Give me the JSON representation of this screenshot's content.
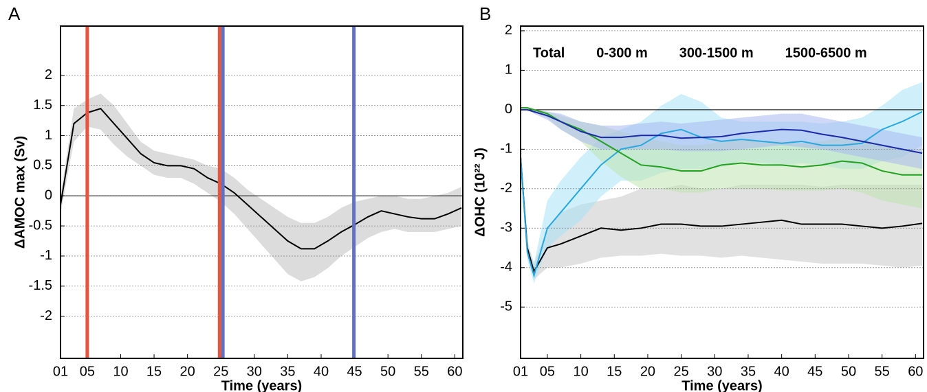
{
  "chart_data": [
    {
      "type": "line",
      "panel_label": "A",
      "xlabel": "Time (years)",
      "ylabel": "ΔAMOC max (Sv)",
      "x": [
        1,
        3,
        5,
        7,
        9,
        11,
        13,
        15,
        17,
        19,
        21,
        23,
        25,
        27,
        29,
        31,
        33,
        35,
        37,
        39,
        41,
        43,
        45,
        47,
        49,
        51,
        53,
        55,
        57,
        59,
        61
      ],
      "series": [
        {
          "color": "#000000",
          "band_color": "#dcdcdc",
          "values": [
            -0.15,
            1.2,
            1.38,
            1.45,
            1.2,
            0.95,
            0.7,
            0.55,
            0.5,
            0.5,
            0.45,
            0.3,
            0.2,
            0.05,
            -0.15,
            -0.35,
            -0.55,
            -0.75,
            -0.88,
            -0.88,
            -0.75,
            -0.6,
            -0.48,
            -0.35,
            -0.25,
            -0.3,
            -0.35,
            -0.38,
            -0.38,
            -0.3,
            -0.2
          ],
          "upper": [
            0,
            1.45,
            1.6,
            1.7,
            1.5,
            1.2,
            0.9,
            0.75,
            0.7,
            0.65,
            0.6,
            0.5,
            0.45,
            0.3,
            0.1,
            -0.05,
            -0.2,
            -0.35,
            -0.45,
            -0.45,
            -0.35,
            -0.2,
            -0.1,
            -0.05,
            0,
            0,
            -0.05,
            -0.05,
            0,
            0.05,
            0.15
          ],
          "lower": [
            -0.3,
            0.9,
            1.15,
            1.1,
            0.85,
            0.65,
            0.5,
            0.35,
            0.3,
            0.3,
            0.2,
            0.05,
            -0.1,
            -0.3,
            -0.55,
            -0.8,
            -1.05,
            -1.3,
            -1.42,
            -1.35,
            -1.2,
            -1.0,
            -0.85,
            -0.7,
            -0.6,
            -0.55,
            -0.6,
            -0.6,
            -0.6,
            -0.55,
            -0.5
          ]
        }
      ],
      "vlines": [
        {
          "x": 5,
          "color": "#e8553e"
        },
        {
          "x": 24.8,
          "color": "#e8553e"
        },
        {
          "x": 25.3,
          "color": "#6272c0"
        },
        {
          "x": 44.9,
          "color": "#6272c0"
        }
      ],
      "xlim": [
        1,
        61.2
      ],
      "ylim": [
        -2.7,
        2.82
      ],
      "xticks": [
        {
          "value": 1,
          "label": "01"
        },
        {
          "value": 5,
          "label": "05"
        },
        10,
        15,
        20,
        25,
        30,
        35,
        40,
        45,
        50,
        55,
        60
      ],
      "yticks": [
        -2,
        -1.5,
        -1,
        -0.5,
        0,
        0.5,
        1,
        1.5,
        2
      ],
      "grid": true,
      "zero_line": true
    },
    {
      "type": "line",
      "panel_label": "B",
      "xlabel": "Time (years)",
      "ylabel": "ΔOHC (10²² J)",
      "x": [
        1,
        2,
        3,
        5,
        7,
        10,
        13,
        16,
        19,
        22,
        25,
        28,
        31,
        34,
        37,
        40,
        43,
        46,
        49,
        52,
        55,
        58,
        61
      ],
      "series": [
        {
          "name": "Total",
          "color": "#000000",
          "band_color": "#c8c8c8",
          "values": [
            -1.2,
            -3.5,
            -4.1,
            -3.5,
            -3.4,
            -3.2,
            -3.0,
            -3.05,
            -3.0,
            -2.9,
            -2.9,
            -2.95,
            -2.95,
            -2.9,
            -2.85,
            -2.8,
            -2.9,
            -2.9,
            -2.9,
            -2.95,
            -3.0,
            -2.95,
            -2.88
          ],
          "upper": [
            -1.1,
            -3.3,
            -3.9,
            -3.0,
            -2.6,
            -2.4,
            -2.3,
            -2.2,
            -2.0,
            -2.0,
            -1.9,
            -2.0,
            -2.0,
            -1.9,
            -1.9,
            -1.9,
            -1.9,
            -1.95,
            -1.9,
            -1.9,
            -1.9,
            -1.9,
            -1.9
          ],
          "lower": [
            -1.3,
            -3.7,
            -4.3,
            -4.0,
            -4.0,
            -3.9,
            -3.75,
            -3.7,
            -3.7,
            -3.65,
            -3.7,
            -3.7,
            -3.75,
            -3.7,
            -3.75,
            -3.8,
            -3.85,
            -3.9,
            -3.9,
            -3.9,
            -3.95,
            -4.0,
            -3.95
          ]
        },
        {
          "name": "0-300 m",
          "color": "#29a8e0",
          "band_color": "#a8e4f5",
          "values": [
            -1.2,
            -3.6,
            -4.2,
            -3.0,
            -2.6,
            -2.0,
            -1.4,
            -1.0,
            -0.9,
            -0.6,
            -0.5,
            -0.7,
            -0.8,
            -0.75,
            -0.8,
            -0.85,
            -0.8,
            -0.9,
            -0.9,
            -0.85,
            -0.5,
            -0.3,
            -0.05
          ],
          "upper": [
            -1.1,
            -3.4,
            -3.9,
            -2.3,
            -1.8,
            -1.2,
            -0.7,
            -0.5,
            -0.3,
            0.1,
            0.4,
            0.2,
            -0.2,
            -0.3,
            -0.3,
            -0.3,
            -0.3,
            -0.35,
            -0.3,
            -0.2,
            0.1,
            0.5,
            0.7
          ],
          "lower": [
            -1.3,
            -3.8,
            -4.4,
            -3.5,
            -3.2,
            -2.8,
            -2.2,
            -1.8,
            -1.8,
            -1.6,
            -1.5,
            -1.5,
            -1.45,
            -1.3,
            -1.35,
            -1.4,
            -1.35,
            -1.4,
            -1.5,
            -1.5,
            -1.3,
            -1.2,
            -0.9
          ]
        },
        {
          "name": "300-1500 m",
          "color": "#22a020",
          "band_color": "#bfe3b0",
          "values": [
            0.05,
            0.05,
            0.0,
            -0.1,
            -0.3,
            -0.5,
            -0.8,
            -1.1,
            -1.4,
            -1.45,
            -1.55,
            -1.55,
            -1.4,
            -1.35,
            -1.4,
            -1.4,
            -1.45,
            -1.4,
            -1.3,
            -1.35,
            -1.55,
            -1.65,
            -1.65
          ],
          "upper": [
            0.05,
            0.05,
            0.0,
            -0.05,
            -0.15,
            -0.3,
            -0.4,
            -0.55,
            -0.7,
            -0.8,
            -0.9,
            -0.9,
            -0.8,
            -0.75,
            -0.8,
            -0.8,
            -0.85,
            -0.8,
            -0.7,
            -0.75,
            -0.9,
            -1.0,
            -1.0
          ],
          "lower": [
            0.05,
            0.0,
            -0.05,
            -0.2,
            -0.5,
            -0.8,
            -1.3,
            -1.7,
            -2.0,
            -2.0,
            -2.1,
            -2.1,
            -2.0,
            -2.0,
            -2.0,
            -2.05,
            -2.05,
            -2.05,
            -2.0,
            -2.1,
            -2.3,
            -2.4,
            -2.5
          ]
        },
        {
          "name": "1500-6500 m",
          "color": "#1a2aa8",
          "band_color": "#a8b8ee",
          "values": [
            0.0,
            0.0,
            -0.05,
            -0.15,
            -0.3,
            -0.55,
            -0.7,
            -0.7,
            -0.65,
            -0.65,
            -0.72,
            -0.7,
            -0.68,
            -0.6,
            -0.55,
            -0.5,
            -0.52,
            -0.62,
            -0.7,
            -0.8,
            -0.9,
            -1.0,
            -1.1
          ],
          "upper": [
            0,
            0,
            0,
            -0.05,
            -0.1,
            -0.3,
            -0.4,
            -0.4,
            -0.35,
            -0.3,
            -0.35,
            -0.3,
            -0.25,
            -0.2,
            -0.15,
            -0.1,
            -0.1,
            -0.2,
            -0.3,
            -0.4,
            -0.5,
            -0.6,
            -0.7
          ],
          "lower": [
            0,
            0,
            -0.1,
            -0.25,
            -0.5,
            -0.8,
            -1.0,
            -1.0,
            -1.0,
            -1.0,
            -1.05,
            -1.05,
            -1.05,
            -1.0,
            -0.95,
            -0.9,
            -0.95,
            -1.0,
            -1.1,
            -1.2,
            -1.3,
            -1.4,
            -1.5
          ]
        }
      ],
      "xlim": [
        1,
        61.2
      ],
      "ylim": [
        -6.3,
        2.12
      ],
      "xticks": [
        {
          "value": 1,
          "label": "01"
        },
        {
          "value": 5,
          "label": "05"
        },
        10,
        15,
        20,
        25,
        30,
        35,
        40,
        45,
        50,
        55,
        60
      ],
      "yticks": [
        -5,
        -4,
        -3,
        -2,
        -1,
        0,
        1,
        2
      ],
      "grid": true,
      "zero_line": true,
      "legend": "top-left"
    }
  ]
}
